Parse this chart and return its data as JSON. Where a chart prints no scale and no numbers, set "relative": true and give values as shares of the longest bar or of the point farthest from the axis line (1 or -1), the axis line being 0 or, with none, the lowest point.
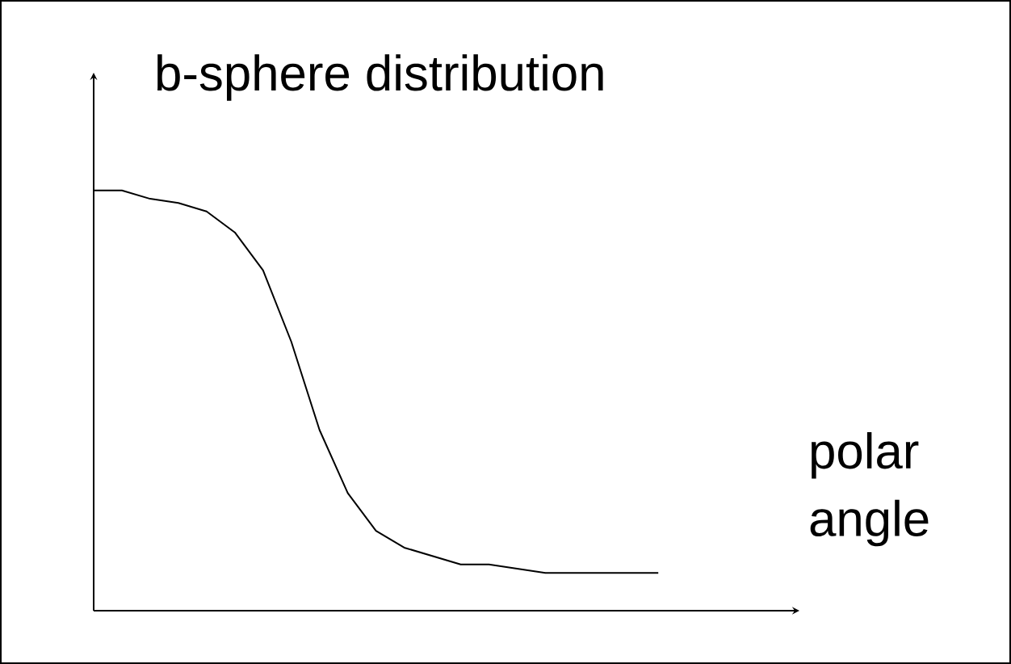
{
  "chart_data": {
    "type": "line",
    "title": "b-sphere distribution",
    "xlabel": "polar angle",
    "relative": true,
    "categories": [
      null,
      null,
      null,
      null,
      null,
      null,
      null,
      null,
      null,
      null,
      null,
      null,
      null,
      null,
      null,
      null,
      null,
      null,
      null,
      null,
      null
    ],
    "series": [
      {
        "color": "#000000",
        "values": [
          1.0,
          1.0,
          0.98,
          0.97,
          0.95,
          0.9,
          0.81,
          0.64,
          0.43,
          0.28,
          0.19,
          0.15,
          0.13,
          0.11,
          0.11,
          0.1,
          0.09,
          0.09,
          0.09,
          0.09,
          0.09
        ]
      }
    ]
  }
}
